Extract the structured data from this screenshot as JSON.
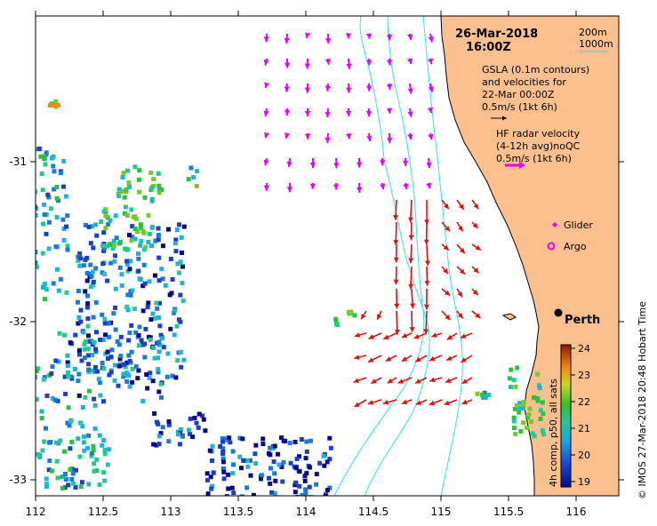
{
  "map": {
    "title_date": "26-Mar-2018",
    "title_time": "16:00Z",
    "contour_legend": [
      "200m",
      "1000m"
    ],
    "gsla_text": [
      "GSLA (0.1m contours)",
      "and velocities for",
      "22-Mar 00:00Z",
      "0.5m/s (1kt 6h)"
    ],
    "hf_text": [
      "HF radar velocity",
      "(4-12h avg)noQC",
      "0.5m/s (1kt 6h)"
    ],
    "glider_label": "Glider",
    "argo_label": "Argo",
    "city": "Perth",
    "colorbar_label": "4h comp, p50, all sats",
    "colorbar_ticks": [
      "24",
      "23",
      "22",
      "21",
      "20",
      "19"
    ],
    "credit": "© IMOS 27-Mar-2018 20:48 Hobart Time",
    "x_ticks": [
      "112",
      "112.5",
      "113",
      "113.5",
      "114",
      "114.5",
      "115",
      "115.5",
      "116"
    ],
    "y_ticks": [
      "-31",
      "-32",
      "-33"
    ],
    "colors": {
      "land": "#fbc08d",
      "contour": "#2fe0e8",
      "hf_arrow": "#e500ff",
      "gsla_arrow": "#e01010"
    }
  }
}
